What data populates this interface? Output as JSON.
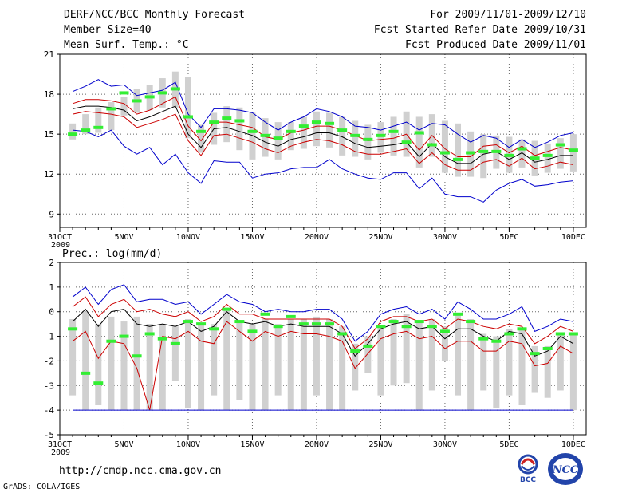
{
  "header": {
    "title_line1": "DERF/NCC/BCC Monthly Forecast",
    "title_line2": "Member Size=40",
    "title_line3": "Mean Surf. Temp.: °C",
    "right_line1": "For 2009/11/01-2009/12/10",
    "right_line2": "Fcst Started Refer Date 2009/10/31",
    "right_line3": "Fcst Produced Date 2009/11/01"
  },
  "footer": {
    "url": "http://cmdp.ncc.cma.gov.cn",
    "grads": "GrADS: COLA/IGES",
    "logo_bcc": "BCC",
    "logo_ncc": "NCC"
  },
  "colors": {
    "max": "#0000cc",
    "upper": "#cc0000",
    "mean": "#000000",
    "lower": "#cc0000",
    "min": "#0000cc",
    "box": "#d0d0d0",
    "median": "#33ee33"
  },
  "chart_data": [
    {
      "type": "line",
      "title": "Mean Surf. Temp.: °C",
      "x_tick_labels": [
        "31OCT",
        "5NOV",
        "10NOV",
        "15NOV",
        "20NOV",
        "25NOV",
        "30NOV",
        "5DEC",
        "10DEC"
      ],
      "x_tick_days": [
        0,
        5,
        10,
        15,
        20,
        25,
        30,
        35,
        40
      ],
      "x_sublabel": "2009",
      "ylim": [
        8,
        21
      ],
      "yticks": [
        9,
        12,
        15,
        18,
        21
      ],
      "days": [
        1,
        2,
        3,
        4,
        5,
        6,
        7,
        8,
        9,
        10,
        11,
        12,
        13,
        14,
        15,
        16,
        17,
        18,
        19,
        20,
        21,
        22,
        23,
        24,
        25,
        26,
        27,
        28,
        29,
        30,
        31,
        32,
        33,
        34,
        35,
        36,
        37,
        38,
        39,
        40
      ],
      "series": [
        {
          "name": "max",
          "values": [
            18.2,
            18.6,
            19.1,
            18.6,
            18.7,
            17.9,
            18.1,
            18.3,
            18.9,
            16.5,
            15.5,
            16.9,
            16.9,
            16.8,
            16.6,
            15.9,
            15.3,
            15.9,
            16.3,
            16.9,
            16.7,
            16.3,
            15.6,
            15.5,
            15.3,
            15.6,
            15.9,
            15.3,
            15.8,
            15.7,
            15.0,
            14.4,
            14.9,
            14.7,
            14.0,
            14.6,
            14.0,
            14.4,
            14.9,
            15.1
          ]
        },
        {
          "name": "upper",
          "values": [
            17.3,
            17.6,
            17.6,
            17.5,
            17.3,
            16.5,
            16.8,
            17.3,
            17.8,
            15.6,
            14.5,
            15.9,
            15.9,
            15.7,
            15.5,
            14.8,
            14.6,
            15.1,
            15.3,
            15.6,
            15.6,
            15.3,
            14.9,
            14.5,
            14.6,
            14.7,
            15.0,
            13.8,
            14.9,
            13.9,
            13.3,
            13.3,
            14.1,
            14.2,
            13.6,
            14.1,
            13.4,
            13.7,
            14.0,
            13.8
          ]
        },
        {
          "name": "mean",
          "values": [
            16.9,
            17.1,
            17.1,
            17.0,
            16.8,
            16.0,
            16.3,
            16.7,
            17.1,
            15.0,
            14.0,
            15.4,
            15.5,
            15.2,
            14.9,
            14.4,
            14.1,
            14.6,
            14.8,
            15.1,
            15.1,
            14.8,
            14.3,
            14.0,
            14.1,
            14.2,
            14.4,
            13.3,
            14.3,
            13.3,
            12.8,
            12.8,
            13.5,
            13.7,
            13.1,
            13.6,
            12.9,
            13.1,
            13.4,
            13.4
          ]
        },
        {
          "name": "lower",
          "values": [
            16.5,
            16.7,
            16.6,
            16.5,
            16.3,
            15.5,
            15.8,
            16.1,
            16.5,
            14.5,
            13.4,
            14.9,
            15.0,
            14.7,
            14.4,
            13.9,
            13.6,
            14.1,
            14.4,
            14.6,
            14.5,
            14.2,
            13.7,
            13.5,
            13.5,
            13.7,
            13.9,
            12.8,
            13.6,
            12.7,
            12.3,
            12.3,
            12.9,
            13.1,
            12.6,
            13.2,
            12.4,
            12.6,
            12.9,
            12.7
          ]
        },
        {
          "name": "min",
          "values": [
            15.3,
            15.2,
            14.8,
            15.3,
            14.1,
            13.5,
            14.0,
            12.7,
            13.5,
            12.1,
            11.3,
            13.0,
            12.9,
            12.9,
            11.7,
            12.0,
            12.1,
            12.4,
            12.5,
            12.5,
            13.1,
            12.4,
            12.0,
            11.7,
            11.6,
            12.1,
            12.1,
            10.9,
            11.7,
            10.5,
            10.3,
            10.3,
            9.9,
            10.8,
            11.3,
            11.6,
            11.1,
            11.2,
            11.4,
            11.5
          ]
        }
      ],
      "boxes": {
        "top": [
          15.8,
          16.5,
          17.0,
          17.4,
          17.8,
          18.4,
          18.7,
          19.2,
          19.7,
          19.3,
          15.7,
          16.6,
          17.1,
          17.0,
          16.6,
          16.2,
          15.9,
          15.9,
          16.3,
          16.7,
          16.6,
          16.3,
          16.0,
          15.7,
          15.9,
          16.3,
          16.7,
          16.3,
          16.5,
          16.0,
          15.8,
          15.2,
          15.0,
          14.9,
          14.8,
          14.6,
          14.5,
          14.3,
          14.7,
          15.0
        ],
        "bottom": [
          14.6,
          15.0,
          15.1,
          15.3,
          16.4,
          16.6,
          16.8,
          17.0,
          17.0,
          14.7,
          13.6,
          14.2,
          14.4,
          13.8,
          13.1,
          13.3,
          13.1,
          13.8,
          13.9,
          14.1,
          14.0,
          13.4,
          13.3,
          13.1,
          13.6,
          13.4,
          13.3,
          12.5,
          13.3,
          12.1,
          11.8,
          11.8,
          11.7,
          12.4,
          12.1,
          12.5,
          11.9,
          12.1,
          12.4,
          12.2
        ],
        "median": [
          15.0,
          15.3,
          15.5,
          16.9,
          18.1,
          17.5,
          17.8,
          18.1,
          18.4,
          16.3,
          15.2,
          15.9,
          16.2,
          16.0,
          15.2,
          14.9,
          14.7,
          15.2,
          15.6,
          15.9,
          15.8,
          15.3,
          14.9,
          14.6,
          14.9,
          15.2,
          14.4,
          15.1,
          14.2,
          13.6,
          13.1,
          13.6,
          13.7,
          13.7,
          13.4,
          13.9,
          13.2,
          13.4,
          14.2,
          13.8
        ]
      }
    },
    {
      "type": "line",
      "title": "Prec.: log(mm/d)",
      "x_tick_labels": [
        "31OCT",
        "5NOV",
        "10NOV",
        "15NOV",
        "20NOV",
        "25NOV",
        "30NOV",
        "5DEC",
        "10DEC"
      ],
      "x_tick_days": [
        0,
        5,
        10,
        15,
        20,
        25,
        30,
        35,
        40
      ],
      "x_sublabel": "2009",
      "ylim": [
        -5,
        2
      ],
      "yticks": [
        -5,
        -4,
        -3,
        -2,
        -1,
        0,
        1,
        2
      ],
      "days": [
        1,
        2,
        3,
        4,
        5,
        6,
        7,
        8,
        9,
        10,
        11,
        12,
        13,
        14,
        15,
        16,
        17,
        18,
        19,
        20,
        21,
        22,
        23,
        24,
        25,
        26,
        27,
        28,
        29,
        30,
        31,
        32,
        33,
        34,
        35,
        36,
        37,
        38,
        39,
        40
      ],
      "series": [
        {
          "name": "max",
          "values": [
            0.6,
            1.0,
            0.3,
            0.9,
            1.1,
            0.4,
            0.5,
            0.5,
            0.3,
            0.4,
            -0.1,
            0.3,
            0.7,
            0.4,
            0.3,
            0.0,
            0.1,
            0.0,
            0.0,
            0.1,
            0.1,
            -0.3,
            -1.2,
            -0.8,
            -0.1,
            0.1,
            0.2,
            -0.1,
            0.1,
            -0.3,
            0.4,
            0.1,
            -0.3,
            -0.3,
            -0.1,
            0.2,
            -0.8,
            -0.6,
            -0.3,
            -0.4
          ]
        },
        {
          "name": "upper",
          "values": [
            0.2,
            0.6,
            -0.2,
            0.3,
            0.5,
            0.0,
            0.1,
            -0.1,
            -0.2,
            0.0,
            -0.4,
            -0.2,
            0.3,
            -0.1,
            -0.1,
            -0.3,
            -0.3,
            -0.3,
            -0.3,
            -0.3,
            -0.3,
            -0.6,
            -1.5,
            -1.1,
            -0.4,
            -0.2,
            -0.2,
            -0.4,
            -0.3,
            -0.7,
            -0.3,
            -0.4,
            -0.6,
            -0.7,
            -0.5,
            -0.6,
            -1.3,
            -1.0,
            -0.6,
            -0.8
          ]
        },
        {
          "name": "mean",
          "values": [
            -0.4,
            0.1,
            -0.6,
            0.0,
            0.1,
            -0.5,
            -0.6,
            -0.5,
            -0.6,
            -0.4,
            -0.8,
            -0.6,
            0.0,
            -0.4,
            -0.5,
            -0.4,
            -0.6,
            -0.5,
            -0.6,
            -0.6,
            -0.6,
            -0.9,
            -1.8,
            -1.3,
            -0.7,
            -0.5,
            -0.4,
            -0.7,
            -0.6,
            -1.1,
            -0.7,
            -0.7,
            -1.0,
            -1.2,
            -0.8,
            -0.9,
            -1.8,
            -1.6,
            -1.0,
            -1.3
          ]
        },
        {
          "name": "lower",
          "values": [
            -1.2,
            -0.8,
            -1.9,
            -1.2,
            -1.3,
            -2.3,
            -4.0,
            -1.0,
            -1.1,
            -0.8,
            -1.2,
            -1.3,
            -0.4,
            -0.8,
            -1.2,
            -0.8,
            -1.0,
            -0.8,
            -0.9,
            -0.9,
            -1.0,
            -1.2,
            -2.3,
            -1.7,
            -1.1,
            -0.9,
            -0.8,
            -1.1,
            -1.0,
            -1.5,
            -1.2,
            -1.2,
            -1.6,
            -1.6,
            -1.2,
            -1.3,
            -2.2,
            -2.1,
            -1.4,
            -1.7
          ]
        },
        {
          "name": "min",
          "values": [
            -4.0,
            -4.0,
            -4.0,
            -4.0,
            -4.0,
            -4.0,
            -4.0,
            -4.0,
            -4.0,
            -4.0,
            -4.0,
            -4.0,
            -4.0,
            -4.0,
            -4.0,
            -4.0,
            -4.0,
            -4.0,
            -4.0,
            -4.0,
            -4.0,
            -4.0,
            -4.0,
            -4.0,
            -4.0,
            -4.0,
            -4.0,
            -4.0,
            -4.0,
            -4.0,
            -4.0,
            -4.0,
            -4.0,
            -4.0,
            -4.0,
            -4.0,
            -4.0,
            -4.0,
            -4.0,
            -4.0
          ]
        }
      ],
      "boxes": {
        "top": [
          -0.3,
          0.0,
          -0.5,
          -0.2,
          -0.4,
          -0.2,
          -0.5,
          -0.5,
          -0.6,
          -0.3,
          -0.5,
          -0.5,
          0.1,
          -0.4,
          -0.5,
          -0.3,
          -0.5,
          -0.3,
          -0.3,
          -0.2,
          -0.3,
          -0.6,
          -1.3,
          -1.0,
          -0.6,
          -0.3,
          -0.1,
          -0.4,
          -0.3,
          -0.6,
          -0.1,
          -0.3,
          -0.9,
          -1.0,
          -0.7,
          -0.7,
          -1.4,
          -1.4,
          -0.9,
          -0.9
        ],
        "bottom": [
          -3.4,
          -4.0,
          -3.8,
          -4.0,
          -4.0,
          -4.0,
          -4.0,
          -4.0,
          -2.8,
          -3.9,
          -4.0,
          -3.4,
          -4.0,
          -3.6,
          -4.0,
          -4.0,
          -3.4,
          -4.0,
          -4.0,
          -3.4,
          -4.0,
          -4.0,
          -3.2,
          -2.5,
          -3.4,
          -3.0,
          -2.9,
          -4.0,
          -3.2,
          -2.0,
          -3.4,
          -4.0,
          -3.2,
          -3.9,
          -3.4,
          -3.8,
          -3.3,
          -3.5,
          -3.2,
          -4.0
        ],
        "median": [
          -0.7,
          -2.5,
          -2.9,
          -1.2,
          -1.0,
          -1.8,
          -0.9,
          -1.1,
          -1.3,
          -0.4,
          -0.5,
          -0.7,
          0.1,
          -0.4,
          -0.8,
          -0.1,
          -0.6,
          -0.2,
          -0.5,
          -0.5,
          -0.5,
          -0.9,
          -1.6,
          -1.4,
          -0.6,
          -0.4,
          -0.6,
          -0.4,
          -0.6,
          -0.8,
          -0.1,
          -0.4,
          -1.1,
          -1.2,
          -0.9,
          -0.7,
          -1.7,
          -1.5,
          -0.9,
          -0.9
        ]
      }
    }
  ]
}
